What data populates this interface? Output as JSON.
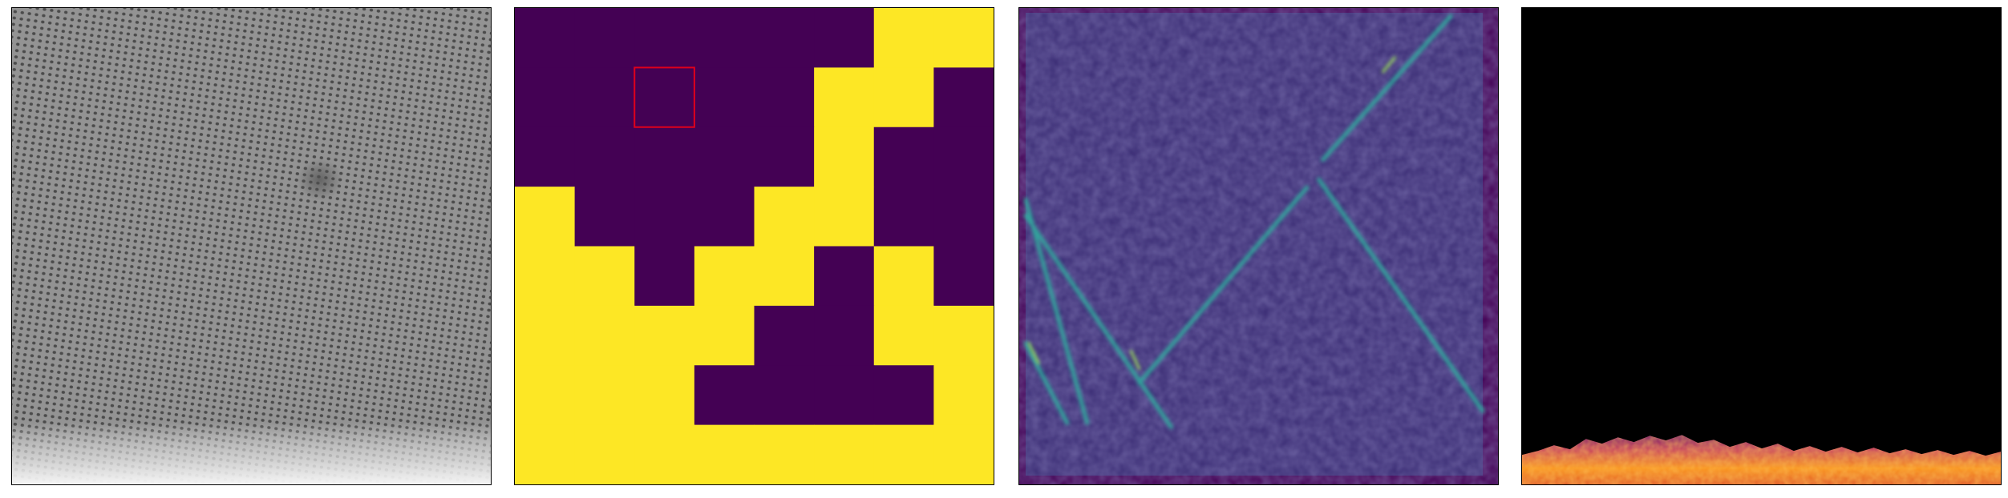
{
  "figure": {
    "panels": [
      {
        "id": "sem-image",
        "kind": "grayscale-micrograph",
        "colormap": "gray"
      },
      {
        "id": "binary-mask",
        "kind": "binary-grid-map",
        "colormap": "viridis",
        "colors": {
          "low": "#440154",
          "high": "#fde725",
          "highlight": "#e0001b"
        },
        "grid_size": [
          8,
          8
        ],
        "highlight_cell": {
          "row": 1,
          "col": 2
        },
        "mask_rows": [
          [
            0,
            0,
            0,
            0,
            0,
            0,
            1,
            1
          ],
          [
            0,
            0,
            0,
            0,
            0,
            1,
            1,
            0
          ],
          [
            0,
            0,
            0,
            0,
            0,
            1,
            0,
            0
          ],
          [
            1,
            0,
            0,
            0,
            1,
            1,
            0,
            0
          ],
          [
            1,
            1,
            0,
            1,
            1,
            0,
            1,
            0
          ],
          [
            1,
            1,
            1,
            1,
            0,
            0,
            1,
            1
          ],
          [
            1,
            1,
            1,
            0,
            0,
            0,
            0,
            1
          ],
          [
            1,
            1,
            1,
            1,
            1,
            1,
            1,
            1
          ]
        ]
      },
      {
        "id": "defect-map",
        "kind": "intensity-map",
        "colormap": "viridis",
        "colors": {
          "background": "#3b2d75",
          "frame": "#440154",
          "line": "#2fb4a0",
          "bright": "#9be05a"
        }
      },
      {
        "id": "inferno-map",
        "kind": "intensity-map",
        "colormap": "inferno",
        "colors": {
          "background": "#000000",
          "low": "#5a0c6e",
          "mid": "#c43f5f",
          "high": "#f9921c"
        }
      }
    ]
  }
}
